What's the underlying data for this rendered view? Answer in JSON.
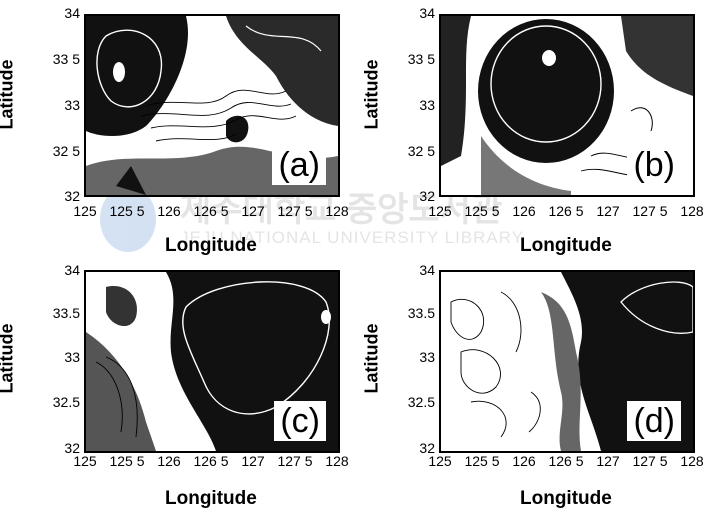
{
  "axes": {
    "ylabel": "Latitude",
    "xlabel": "Longitude",
    "yticks": [
      "34",
      "33 5",
      "33",
      "32 5",
      "32"
    ],
    "yticks_c": [
      "34",
      "33.5",
      "33",
      "32.5",
      "32"
    ],
    "xticks": [
      "125",
      "125 5",
      "126",
      "126 5",
      "127",
      "127 5",
      "128"
    ]
  },
  "panels": [
    {
      "id": "a",
      "label": "(a)"
    },
    {
      "id": "b",
      "label": "(b)"
    },
    {
      "id": "c",
      "label": "(c)"
    },
    {
      "id": "d",
      "label": "(d)"
    }
  ],
  "watermark": {
    "line1": "제주대학교 중앙도서관",
    "line2": "JEJU NATIONAL UNIVERSITY LIBRARY"
  },
  "colors": {
    "dark": "#111111",
    "gray": "#7a7a7a",
    "contour_light": "#ffffff",
    "contour_dark": "#000000"
  }
}
